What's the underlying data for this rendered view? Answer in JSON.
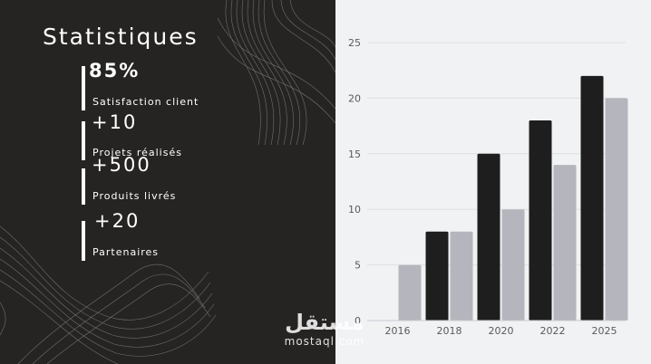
{
  "panel": {
    "title": "Statistiques",
    "stats": [
      {
        "value": "85%",
        "label": "Satisfaction client"
      },
      {
        "value": "+10",
        "label": "Projets réalisés"
      },
      {
        "value": "+500",
        "label": "Produits livrés"
      },
      {
        "value": "+20",
        "label": "Partenaires"
      }
    ]
  },
  "colors": {
    "panel_bg": "#252422",
    "chart_bg": "#f0f2f3",
    "series_dark": "#1e1e1e",
    "series_light": "#b5b6bd"
  },
  "watermark": {
    "logo": "مستقل",
    "url": "mostaql.com"
  },
  "chart_data": {
    "type": "bar",
    "title": "",
    "xlabel": "",
    "ylabel": "",
    "categories": [
      "2016",
      "2018",
      "2020",
      "2022",
      "2025"
    ],
    "series": [
      {
        "values": [
          0,
          8,
          15,
          18,
          22
        ]
      },
      {
        "values": [
          5,
          8,
          10,
          14,
          20
        ]
      }
    ],
    "ylim": [
      0,
      25
    ],
    "yticks": [
      0,
      5,
      10,
      15,
      20,
      25
    ],
    "grid": true,
    "legend": "none"
  }
}
